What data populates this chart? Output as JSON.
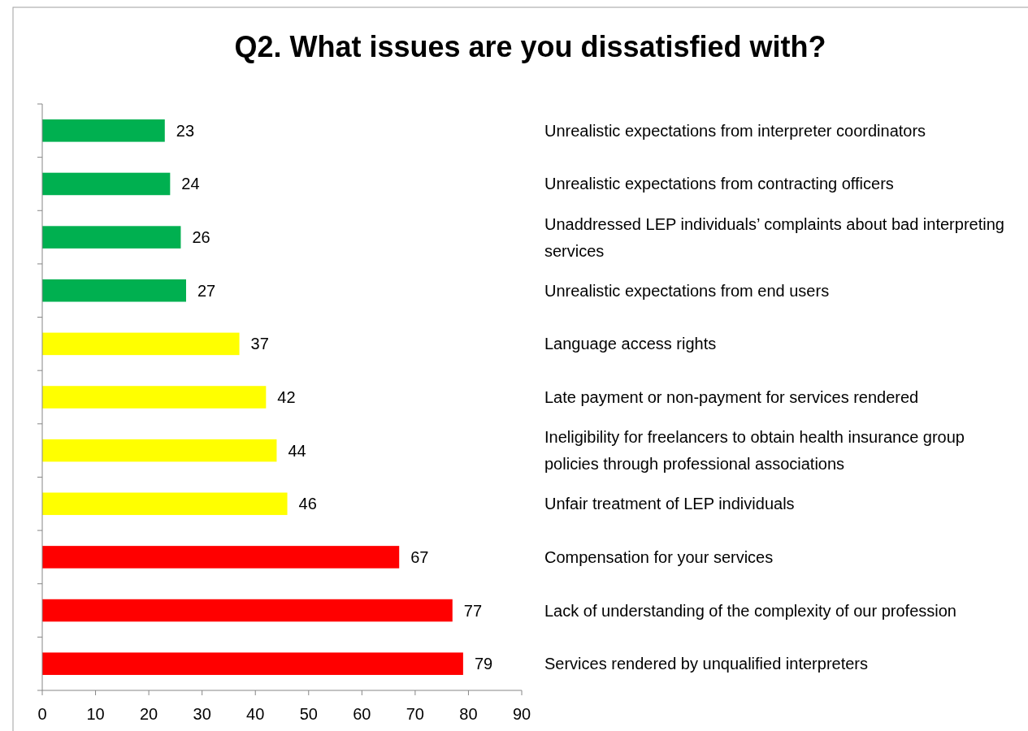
{
  "chart_data": {
    "type": "bar",
    "orientation": "horizontal",
    "title": "Q2. What issues are you dissatisfied with?",
    "categories": [
      "Unrealistic expectations from interpreter coordinators",
      "Unrealistic expectations from contracting officers",
      "Unaddressed LEP individuals’ complaints about bad interpreting services",
      "Unrealistic expectations from end users",
      "Language access rights",
      "Late payment or non-payment for services rendered",
      "Ineligibility for freelancers to obtain health insurance group policies through professional associations",
      "Unfair treatment of LEP individuals",
      "Compensation for your services",
      "Lack of understanding of the complexity of our profession",
      "Services rendered by unqualified interpreters"
    ],
    "values": [
      23,
      24,
      26,
      27,
      37,
      42,
      44,
      46,
      67,
      77,
      79
    ],
    "colors": [
      "#00b050",
      "#00b050",
      "#00b050",
      "#00b050",
      "#ffff00",
      "#ffff00",
      "#ffff00",
      "#ffff00",
      "#ff0000",
      "#ff0000",
      "#ff0000"
    ],
    "xlim": [
      0,
      90
    ],
    "xticks": [
      0,
      10,
      20,
      30,
      40,
      50,
      60,
      70,
      80,
      90
    ],
    "data_labels": true,
    "grid": false
  }
}
